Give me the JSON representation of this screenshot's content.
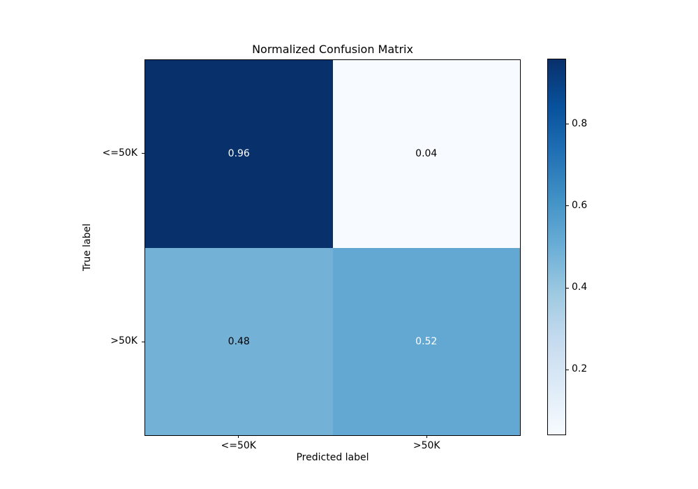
{
  "chart_data": {
    "type": "heatmap",
    "title": "Normalized Confusion Matrix",
    "xlabel": "Predicted label",
    "ylabel": "True label",
    "x_categories": [
      "<=50K",
      ">50K"
    ],
    "y_categories": [
      "<=50K",
      ">50K"
    ],
    "values": [
      [
        0.96,
        0.04
      ],
      [
        0.48,
        0.52
      ]
    ],
    "cell_labels": [
      [
        "0.96",
        "0.04"
      ],
      [
        "0.48",
        "0.52"
      ]
    ],
    "cell_colors": [
      [
        "#08306b",
        "#f7fbff"
      ],
      [
        "#73b1d7",
        "#63a8d2"
      ]
    ],
    "cell_text_colors": [
      [
        "#ffffff",
        "#000000"
      ],
      [
        "#000000",
        "#ffffff"
      ]
    ],
    "colormap": "Blues",
    "vmin": 0.04,
    "vmax": 0.96,
    "colorbar_ticks": [
      0.8,
      0.6,
      0.4,
      0.2
    ],
    "colorbar_tick_labels": [
      "0.8",
      "0.6",
      "0.4",
      "0.2"
    ],
    "colorbar_gradient_top_to_bottom": [
      "#08306b",
      "#08519c",
      "#2171b5",
      "#4292c6",
      "#6baed6",
      "#9ecae1",
      "#c6dbef",
      "#deebf7",
      "#f7fbff"
    ],
    "grid": false,
    "legend": false,
    "background_color": "#ffffff"
  }
}
